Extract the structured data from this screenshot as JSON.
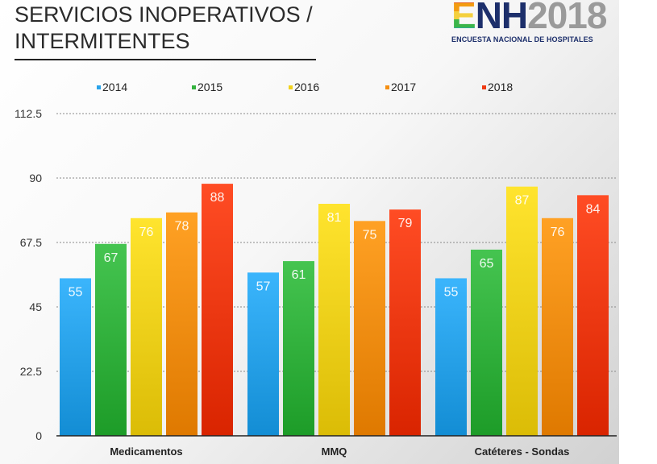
{
  "header": {
    "title_line1": "SERVICIOS INOPERATIVOS /",
    "title_line2": "INTERMITENTES"
  },
  "logo": {
    "enh": "ENH",
    "year": "2018",
    "subtitle": "ENCUESTA NACIONAL DE HOSPITALES",
    "colors": [
      "#d9262b",
      "#f39c12",
      "#f4d03f",
      "#3bb54a",
      "#2a9fd8"
    ]
  },
  "chart_data": {
    "type": "bar",
    "categories": [
      "Medicamentos",
      "MMQ",
      "Catéteres - Sondas"
    ],
    "series": [
      {
        "name": "2014",
        "values": [
          55,
          57,
          55
        ],
        "color": "#29a3ea"
      },
      {
        "name": "2015",
        "values": [
          67,
          61,
          65
        ],
        "color": "#33b23e"
      },
      {
        "name": "2016",
        "values": [
          76,
          81,
          87
        ],
        "color": "#f1d21c"
      },
      {
        "name": "2017",
        "values": [
          78,
          75,
          76
        ],
        "color": "#f58f12"
      },
      {
        "name": "2018",
        "values": [
          88,
          79,
          84
        ],
        "color": "#ef3a12"
      }
    ],
    "ylim": [
      0,
      112.5
    ],
    "yticks": [
      "0",
      "22.5",
      "45",
      "67.5",
      "90",
      "112.5"
    ],
    "grid": true,
    "legend_position": "top",
    "data_labels": true
  }
}
